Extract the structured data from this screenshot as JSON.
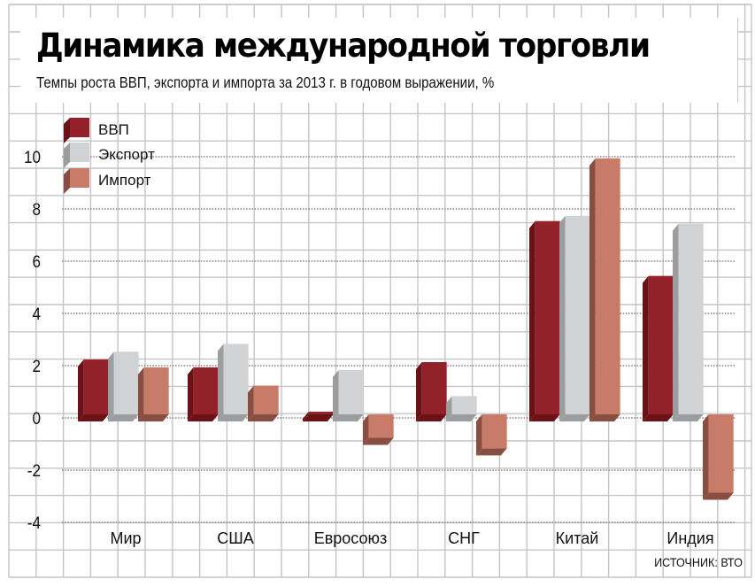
{
  "title": "Динамика международной торговли",
  "subtitle": "Темпы роста ВВП, экспорта и импорта за 2013 г. в годовом выражении, %",
  "source": "ИСТОЧНИК: ВТО",
  "chart_data": {
    "type": "bar",
    "title": "Динамика международной торговли",
    "subtitle": "Темпы роста ВВП, экспорта и импорта за 2013 г. в годовом выражении, %",
    "xlabel": "",
    "ylabel": "",
    "ylim": [
      -4,
      10
    ],
    "yticks": [
      10,
      8,
      6,
      4,
      2,
      0,
      -2,
      -4
    ],
    "grid": true,
    "legend_position": "top-left",
    "categories": [
      "Мир",
      "США",
      "Евросоюз",
      "СНГ",
      "Китай",
      "Индия"
    ],
    "series": [
      {
        "name": "ВВП",
        "color": "#93212A",
        "side_color": "#6B1216",
        "values": [
          2.1,
          1.8,
          0.1,
          2.0,
          7.4,
          5.3
        ]
      },
      {
        "name": "Экспорт",
        "color": "#D1D2D4",
        "side_color": "#9C9D9F",
        "values": [
          2.4,
          2.7,
          1.7,
          0.7,
          7.6,
          7.3
        ]
      },
      {
        "name": "Импорт",
        "color": "#C97B69",
        "side_color": "#884E42",
        "values": [
          1.8,
          1.1,
          -0.9,
          -1.3,
          9.8,
          -3.0
        ]
      }
    ],
    "source": "ИСТОЧНИК: ВТО"
  }
}
